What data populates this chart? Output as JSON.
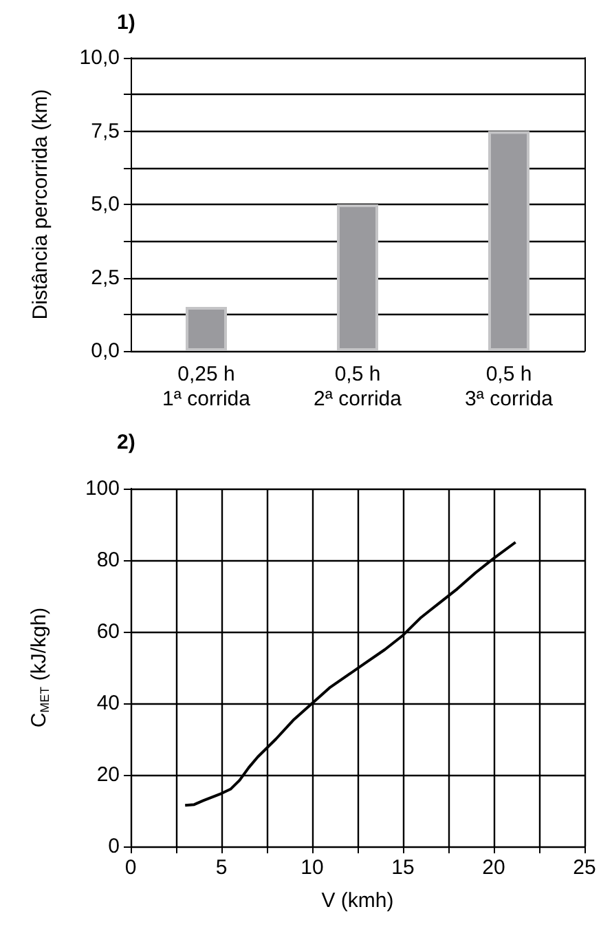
{
  "chart_data": [
    {
      "type": "bar",
      "title": "1)",
      "ylabel": "Distância percorrida (km)",
      "categories": [
        "0,25 h\n1ª corrida",
        "0,5 h\n2ª corrida",
        "0,5 h\n3ª corrida"
      ],
      "values": [
        1.5,
        5.0,
        7.5
      ],
      "color": "#9a9a9e",
      "ylim": [
        0,
        10
      ],
      "yticks": [
        {
          "value": 0,
          "label": "0,0"
        },
        {
          "value": 1.25,
          "label": null
        },
        {
          "value": 2.5,
          "label": "2,5"
        },
        {
          "value": 3.75,
          "label": null
        },
        {
          "value": 5,
          "label": "5,0"
        },
        {
          "value": 6.25,
          "label": null
        },
        {
          "value": 7.5,
          "label": "7,5"
        },
        {
          "value": 8.75,
          "label": null
        },
        {
          "value": 10,
          "label": "10,0"
        }
      ],
      "grid": "y"
    },
    {
      "type": "line",
      "title": "2)",
      "xlabel": "V (kmh)",
      "ylabel": "C$_{MET}$ (kJ/kgh)",
      "color": "#000000",
      "marker": "none",
      "x": [
        3,
        3.5,
        4,
        5,
        5.5,
        6,
        6.5,
        7,
        8,
        9,
        10,
        11,
        12,
        13,
        14,
        15,
        16,
        16.5,
        17,
        18,
        19,
        20,
        21.2
      ],
      "values": [
        11.5,
        11.7,
        12.8,
        14.8,
        16,
        18.5,
        22,
        25,
        30,
        35.5,
        40,
        44.5,
        48,
        51.5,
        55,
        59,
        64,
        66,
        68,
        72,
        76.5,
        80.5,
        85
      ],
      "xlim": [
        0,
        25
      ],
      "xticks": [
        0,
        {
          "value": 2.5,
          "label": null
        },
        5,
        {
          "value": 7.5,
          "label": null
        },
        10,
        {
          "value": 12.5,
          "label": null
        },
        15,
        {
          "value": 17.5,
          "label": null
        },
        20,
        {
          "value": 22.5,
          "label": null
        },
        25
      ],
      "ylim": [
        0,
        100
      ],
      "yticks": [
        0,
        20,
        40,
        60,
        80,
        100
      ],
      "grid": true
    }
  ]
}
